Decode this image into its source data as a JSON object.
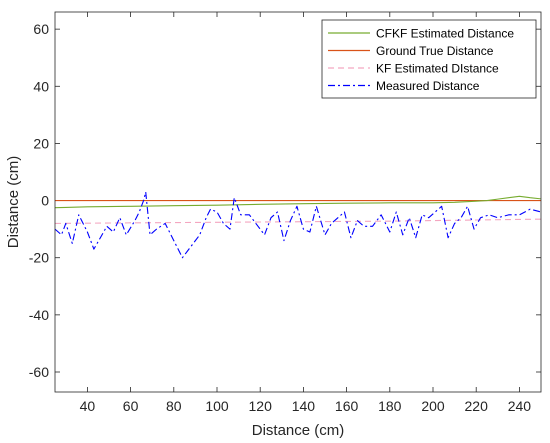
{
  "chart_data": {
    "type": "line",
    "title": "",
    "xlabel": "Distance (cm)",
    "ylabel": "Distance (cm)",
    "xlim": [
      25,
      250
    ],
    "ylim": [
      -67,
      66
    ],
    "xticks": [
      40,
      60,
      80,
      100,
      120,
      140,
      160,
      180,
      200,
      220,
      240
    ],
    "yticks": [
      -60,
      -40,
      -20,
      0,
      20,
      40,
      60
    ],
    "legend_position": "top-right",
    "grid": false,
    "series": [
      {
        "name": "CFKF Estimated Distance",
        "color": "#77AC30",
        "dash": "solid",
        "x": [
          25,
          30,
          40,
          60,
          80,
          100,
          120,
          140,
          160,
          180,
          200,
          210,
          220,
          225,
          230,
          235,
          240,
          245,
          250
        ],
        "y": [
          -2.5,
          -2.4,
          -2.2,
          -2.0,
          -1.8,
          -1.6,
          -1.3,
          -1.1,
          -0.9,
          -0.8,
          -0.8,
          -0.6,
          -0.2,
          0.0,
          0.5,
          1.0,
          1.5,
          1.0,
          0.6
        ]
      },
      {
        "name": "Ground True Distance",
        "color": "#D95319",
        "dash": "solid",
        "x": [
          25,
          250
        ],
        "y": [
          0,
          0
        ]
      },
      {
        "name": "KF Estimated DIstance",
        "color": "#F4A6C0",
        "dash": "dashed",
        "x": [
          25,
          60,
          100,
          140,
          180,
          220,
          250
        ],
        "y": [
          -8,
          -7.8,
          -7.6,
          -7.4,
          -7.2,
          -6.8,
          -6.5
        ]
      },
      {
        "name": "Measured Distance",
        "color": "#0000FF",
        "dash": "dashdot",
        "x": [
          25,
          28,
          30,
          33,
          36,
          40,
          43,
          46,
          49,
          52,
          55,
          58,
          62,
          64,
          66,
          67,
          69,
          72,
          76,
          80,
          84,
          88,
          92,
          95,
          97,
          100,
          103,
          106,
          108,
          111,
          115,
          119,
          122,
          125,
          128,
          131,
          134,
          137,
          140,
          143,
          146,
          150,
          153,
          156,
          159,
          162,
          165,
          168,
          172,
          176,
          180,
          183,
          186,
          189,
          192,
          195,
          198,
          201,
          204,
          207,
          210,
          213,
          216,
          219,
          222,
          226,
          230,
          235,
          240,
          245,
          250
        ],
        "y": [
          -10,
          -12,
          -8,
          -15,
          -5,
          -11,
          -17,
          -13,
          -9,
          -11,
          -6,
          -12,
          -7,
          -4,
          0,
          3,
          -12,
          -10,
          -8,
          -14,
          -20,
          -16,
          -12,
          -6,
          -3,
          -4,
          -8,
          -10,
          1,
          -5,
          -5,
          -9,
          -12,
          -6,
          -4,
          -14,
          -7,
          -2,
          -10,
          -11,
          -2,
          -12,
          -8,
          -6,
          -4,
          -13,
          -7,
          -9,
          -9,
          -5,
          -11,
          -4,
          -12,
          -6,
          -13,
          -5,
          -6,
          -4,
          -2,
          -13,
          -8,
          -6,
          -2,
          -10,
          -6,
          -5,
          -6,
          -5,
          -5,
          -3,
          -4
        ]
      }
    ]
  }
}
